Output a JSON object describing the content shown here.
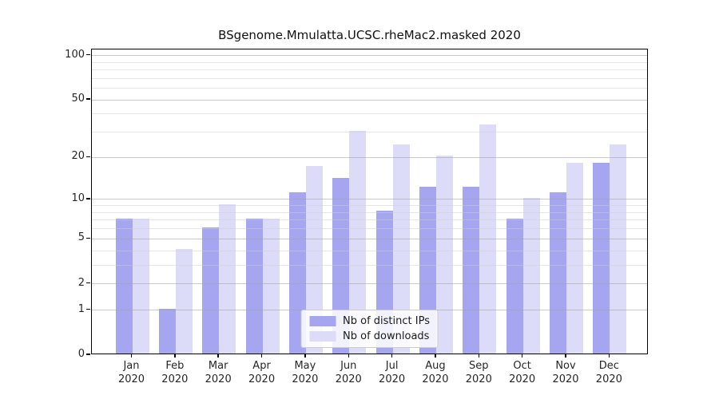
{
  "chart_data": {
    "type": "bar",
    "title": "BSgenome.Mmulatta.UCSC.rheMac2.masked 2020",
    "categories": [
      "Jan",
      "Feb",
      "Mar",
      "Apr",
      "May",
      "Jun",
      "Jul",
      "Aug",
      "Sep",
      "Oct",
      "Nov",
      "Dec"
    ],
    "year_label": "2020",
    "series": [
      {
        "name": "Nb of distinct IPs",
        "color": "#a6a6f0",
        "values": [
          7,
          1,
          6,
          7,
          11,
          14,
          8,
          12,
          12,
          7,
          11,
          18
        ]
      },
      {
        "name": "Nb of downloads",
        "color": "#dcdcf8",
        "values": [
          7,
          4,
          9,
          7,
          17,
          30,
          24,
          20,
          33,
          10,
          18,
          24
        ]
      }
    ],
    "xlabel": "",
    "ylabel": "",
    "y_scale": "log1p",
    "y_major_ticks": [
      0,
      1,
      2,
      5,
      10,
      20,
      50,
      100
    ],
    "y_minor_ticks": [
      3,
      4,
      6,
      7,
      8,
      9,
      30,
      40,
      60,
      70,
      80,
      90
    ],
    "ylim": [
      0,
      110
    ],
    "grid": "horizontal",
    "legend_position": "lower center",
    "colors": {
      "grid_major": "rgba(160,160,160,0.55)",
      "grid_minor": "rgba(205,205,205,0.5)",
      "axis": "#000000",
      "text": "#262626"
    }
  }
}
